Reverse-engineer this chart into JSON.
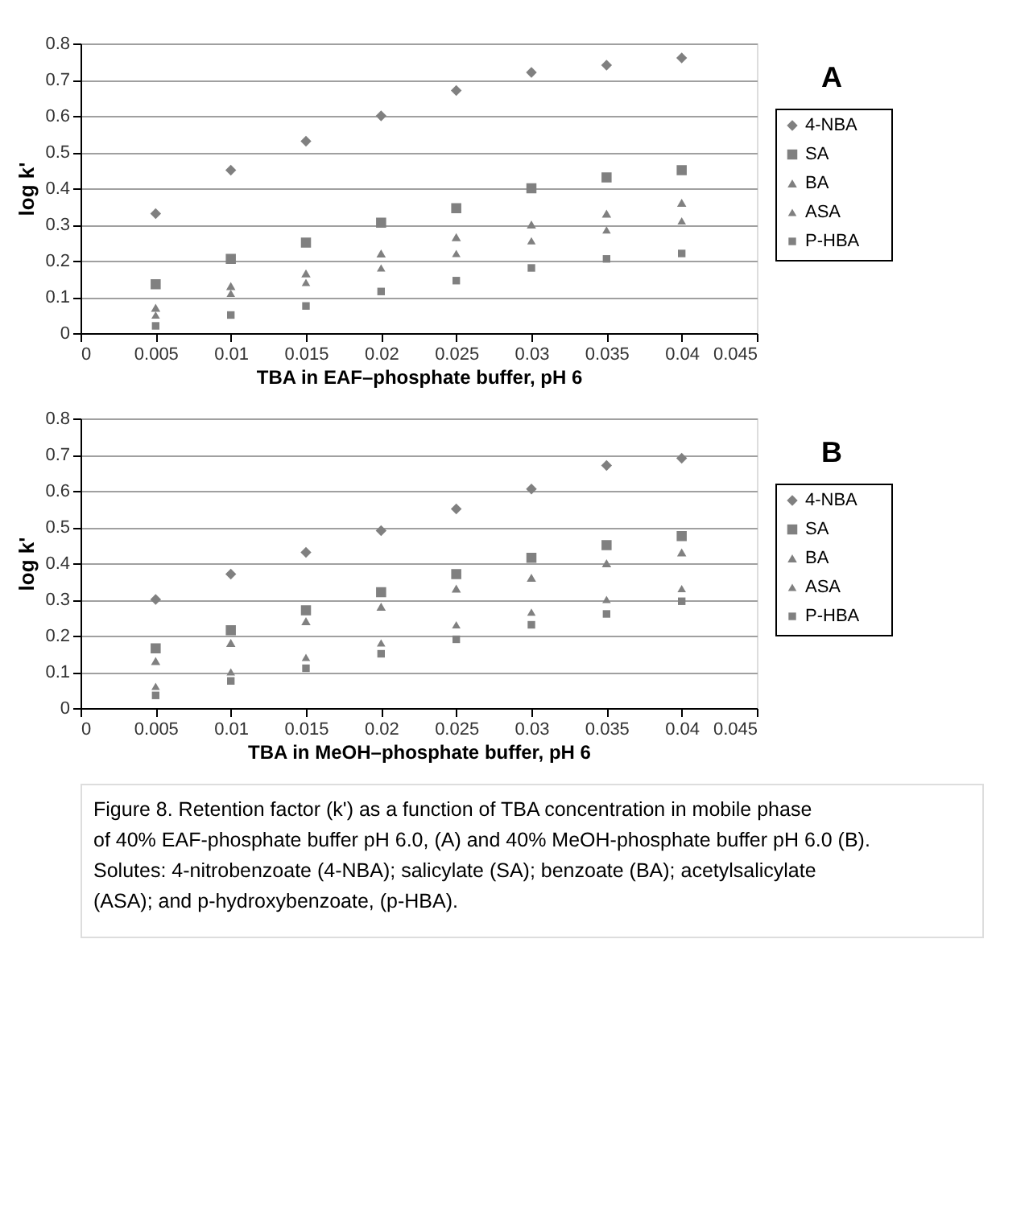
{
  "chart_data": [
    {
      "type": "scatter",
      "x": [
        0.005,
        0.01,
        0.015,
        0.02,
        0.025,
        0.03,
        0.035,
        0.04
      ],
      "xlim": [
        0,
        0.045
      ],
      "xticks": [
        0,
        0.005,
        0.01,
        0.015,
        0.02,
        0.025,
        0.03,
        0.035,
        0.04,
        0.045
      ],
      "ylim": [
        0,
        0.8
      ],
      "yticks": [
        0,
        0.1,
        0.2,
        0.3,
        0.4,
        0.5,
        0.6,
        0.7,
        0.8
      ],
      "xlabel": "TBA in EAF–phosphate buffer, pH 6",
      "ylabel": "log k'",
      "grid": "y",
      "legend": "right",
      "annotations": [
        "A"
      ],
      "series": [
        {
          "name": "4-NBA",
          "color": "#808080",
          "marker": "diamond",
          "values": [
            0.33,
            0.45,
            0.53,
            0.6,
            0.67,
            0.72,
            0.74,
            0.76
          ]
        },
        {
          "name": "SA",
          "color": "#808080",
          "marker": "square",
          "values": [
            0.135,
            0.205,
            0.25,
            0.305,
            0.345,
            0.4,
            0.43,
            0.45
          ]
        },
        {
          "name": "BA",
          "color": "#808080",
          "marker": "triangle",
          "values": [
            0.07,
            0.13,
            0.165,
            0.22,
            0.265,
            0.3,
            0.33,
            0.36
          ]
        },
        {
          "name": "ASA",
          "color": "#808080",
          "marker": "triangle",
          "values": [
            0.05,
            0.11,
            0.14,
            0.18,
            0.22,
            0.255,
            0.285,
            0.31
          ]
        },
        {
          "name": "P-HBA",
          "color": "#808080",
          "marker": "square",
          "values": [
            0.02,
            0.05,
            0.075,
            0.115,
            0.145,
            0.18,
            0.205,
            0.22
          ]
        }
      ]
    },
    {
      "type": "scatter",
      "x": [
        0.005,
        0.01,
        0.015,
        0.02,
        0.025,
        0.03,
        0.035,
        0.04
      ],
      "xlim": [
        0,
        0.045
      ],
      "xticks": [
        0,
        0.005,
        0.01,
        0.015,
        0.02,
        0.025,
        0.03,
        0.035,
        0.04,
        0.045
      ],
      "ylim": [
        0,
        0.8
      ],
      "yticks": [
        0,
        0.1,
        0.2,
        0.3,
        0.4,
        0.5,
        0.6,
        0.7,
        0.8
      ],
      "xlabel": "TBA in MeOH–phosphate buffer, pH 6",
      "ylabel": "log k'",
      "grid": "y",
      "legend": "right",
      "annotations": [
        "B",
        "Figure 8. Retention factor (k') as a function of TBA concentration in mobile phase of 40% EAF-phosphate buffer pH 6.0, (A) and 40% MeOH-phosphate buffer pH 6.0 (B). Solutes: 4-nitrobenzoate (4-NBA); salicylate (SA); benzoate (BA); acetylsalicylate (ASA); and p-hydroxybenzoate, (p-HBA)."
      ],
      "series": [
        {
          "name": "4-NBA",
          "color": "#808080",
          "marker": "diamond",
          "values": [
            0.3,
            0.37,
            0.43,
            0.49,
            0.55,
            0.605,
            0.67,
            0.69
          ]
        },
        {
          "name": "SA",
          "color": "#808080",
          "marker": "square",
          "values": [
            0.165,
            0.215,
            0.27,
            0.32,
            0.37,
            0.415,
            0.45,
            0.475
          ]
        },
        {
          "name": "BA",
          "color": "#808080",
          "marker": "triangle",
          "values": [
            0.13,
            0.18,
            0.24,
            0.28,
            0.33,
            0.36,
            0.4,
            0.43
          ]
        },
        {
          "name": "ASA",
          "color": "#808080",
          "marker": "triangle",
          "values": [
            0.06,
            0.1,
            0.14,
            0.18,
            0.23,
            0.265,
            0.3,
            0.33
          ]
        },
        {
          "name": "P-HBA",
          "color": "#808080",
          "marker": "square",
          "values": [
            0.035,
            0.075,
            0.11,
            0.15,
            0.19,
            0.23,
            0.26,
            0.295
          ]
        }
      ]
    }
  ]
}
